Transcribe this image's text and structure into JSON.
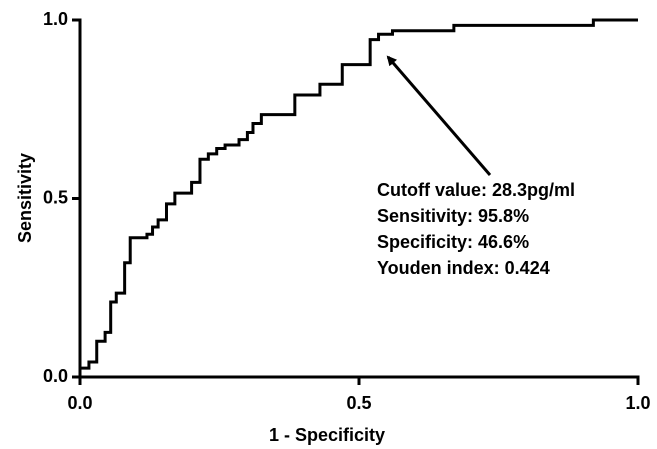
{
  "chart_data": {
    "type": "line",
    "x_label": "1 - Specificity",
    "y_label": "Sensitivity",
    "color": "#000000",
    "xlim": [
      0,
      1
    ],
    "ylim": [
      0,
      1
    ],
    "xticks": [
      {
        "value": 0,
        "label": "0.0"
      },
      {
        "value": 0.5,
        "label": "0.5"
      },
      {
        "value": 1,
        "label": "1.0"
      }
    ],
    "yticks": [
      {
        "value": 0,
        "label": "0.0"
      },
      {
        "value": 0.5,
        "label": "0.5"
      },
      {
        "value": 1,
        "label": "1.0"
      }
    ],
    "x": [
      0,
      0,
      0.016,
      0.016,
      0.03,
      0.03,
      0.045,
      0.045,
      0.055,
      0.055,
      0.065,
      0.065,
      0.08,
      0.08,
      0.09,
      0.09,
      0.12,
      0.12,
      0.13,
      0.13,
      0.14,
      0.14,
      0.155,
      0.155,
      0.17,
      0.17,
      0.2,
      0.2,
      0.215,
      0.215,
      0.23,
      0.23,
      0.245,
      0.245,
      0.26,
      0.26,
      0.285,
      0.285,
      0.3,
      0.3,
      0.31,
      0.31,
      0.325,
      0.325,
      0.385,
      0.385,
      0.43,
      0.43,
      0.47,
      0.47,
      0.52,
      0.52,
      0.535,
      0.535,
      0.56,
      0.56,
      0.67,
      0.67,
      0.92,
      0.92,
      1.0
    ],
    "values": [
      0,
      0.025,
      0.025,
      0.042,
      0.042,
      0.1,
      0.1,
      0.125,
      0.125,
      0.21,
      0.21,
      0.235,
      0.235,
      0.32,
      0.32,
      0.39,
      0.39,
      0.4,
      0.4,
      0.42,
      0.42,
      0.44,
      0.44,
      0.485,
      0.485,
      0.515,
      0.515,
      0.545,
      0.545,
      0.61,
      0.61,
      0.625,
      0.625,
      0.64,
      0.64,
      0.65,
      0.65,
      0.665,
      0.665,
      0.685,
      0.685,
      0.71,
      0.71,
      0.735,
      0.735,
      0.79,
      0.79,
      0.82,
      0.82,
      0.875,
      0.875,
      0.945,
      0.945,
      0.96,
      0.96,
      0.97,
      0.97,
      0.985,
      0.985,
      1.0,
      1.0
    ],
    "annotations": [
      "Cutoff value: 28.3pg/ml",
      "Sensitivity: 95.8%",
      "Specificity: 46.6%",
      "Youden index: 0.424"
    ]
  }
}
